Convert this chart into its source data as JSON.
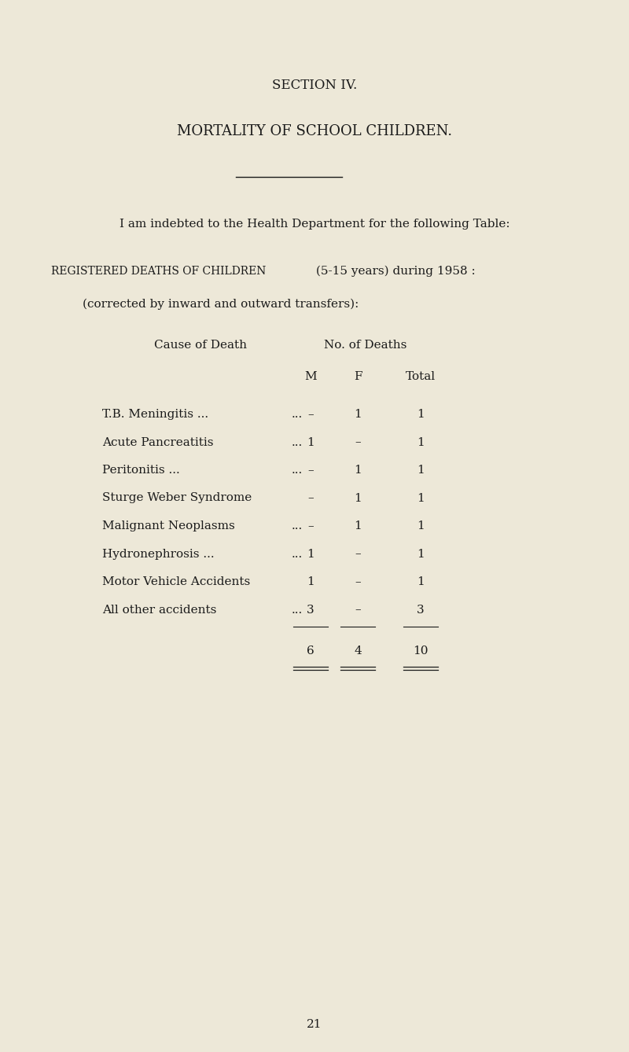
{
  "bg_color": "#ede8d8",
  "text_color": "#1a1a1a",
  "section_title": "SECTION IV.",
  "main_title": "MORTALITY OF SCHOOL CHILDREN.",
  "intro_text": "I am indebted to the Health Department for the following Table:",
  "reg_line1_parts": [
    {
      "text": "R",
      "size": 11.5
    },
    {
      "text": "egistered ",
      "size": 9.5
    },
    {
      "text": "D",
      "size": 11.5
    },
    {
      "text": "eaths of ",
      "size": 9.5
    },
    {
      "text": "C",
      "size": 11.5
    },
    {
      "text": "hildren",
      "size": 9.5
    }
  ],
  "reg_line1_suffix": " (5-15 years) during 1958 :",
  "reg_line2": "(corrected by inward and outward transfers):",
  "col_header_cause": "Cause of Death",
  "col_header_no": "No. of Deaths",
  "col_header_M": "M",
  "col_header_F": "F",
  "col_header_Total": "Total",
  "rows": [
    {
      "cause": "T.B. Meningitis ...",
      "dots": "...",
      "M": "–",
      "F": "1",
      "Total": "1"
    },
    {
      "cause": "Acute Pancreatitis",
      "dots": "...",
      "M": "1",
      "F": "–",
      "Total": "1"
    },
    {
      "cause": "Peritonitis ...",
      "dots": "...",
      "M": "–",
      "F": "1",
      "Total": "1"
    },
    {
      "cause": "Sturge Weber Syndrome",
      "dots": "",
      "M": "–",
      "F": "1",
      "Total": "1"
    },
    {
      "cause": "Malignant Neoplasms",
      "dots": "...",
      "M": "–",
      "F": "1",
      "Total": "1"
    },
    {
      "cause": "Hydronephrosis ...",
      "dots": "...",
      "M": "1",
      "F": "–",
      "Total": "1"
    },
    {
      "cause": "Motor Vehicle Accidents",
      "dots": "",
      "M": "1",
      "F": "–",
      "Total": "1"
    },
    {
      "cause": "All other accidents",
      "dots": "...",
      "M": "3",
      "F": "–",
      "Total": "3"
    }
  ],
  "total_M": "6",
  "total_F": "4",
  "total_Total": "10",
  "page_number": "21",
  "figwidth": 8.0,
  "figheight": 13.38,
  "dpi": 100
}
